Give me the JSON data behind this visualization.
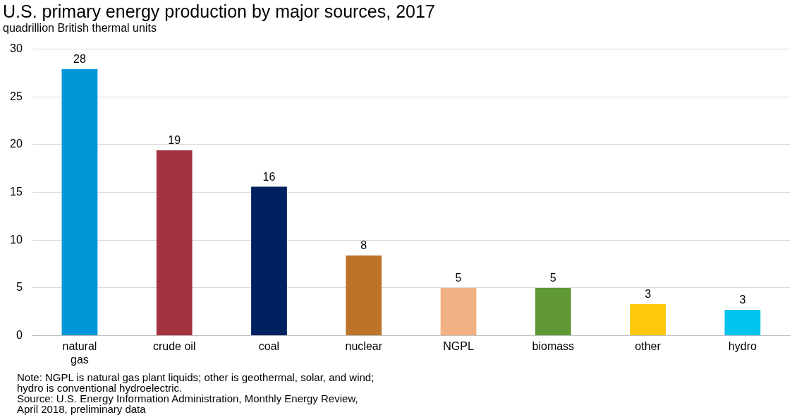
{
  "chart_data": {
    "type": "bar",
    "title": "U.S. primary energy production by major sources, 2017",
    "subtitle": "quadrillion British thermal units",
    "categories": [
      "natural gas",
      "crude oil",
      "coal",
      "nuclear",
      "NGPL",
      "biomass",
      "other",
      "hydro"
    ],
    "values": [
      27.9,
      19.4,
      15.6,
      8.4,
      5.0,
      5.0,
      3.3,
      2.7
    ],
    "value_labels": [
      "28",
      "19",
      "16",
      "8",
      "5",
      "5",
      "3",
      "3"
    ],
    "colors": [
      "#0096d7",
      "#a33340",
      "#002060",
      "#bd732a",
      "#f2b183",
      "#5f9834",
      "#ffc90b",
      "#00c4ed"
    ],
    "ylim": [
      0,
      30
    ],
    "yticks": [
      0,
      5,
      10,
      15,
      20,
      25,
      30
    ],
    "grid": "y",
    "legend": false,
    "annotations": [
      "Note: NGPL is natural gas plant liquids; other is geothermal, solar, and wind;",
      "hydro is conventional hydroelectric.",
      "Source: U.S. Energy Information Administration, Monthly Energy Review,",
      "April 2018, preliminary data"
    ]
  }
}
